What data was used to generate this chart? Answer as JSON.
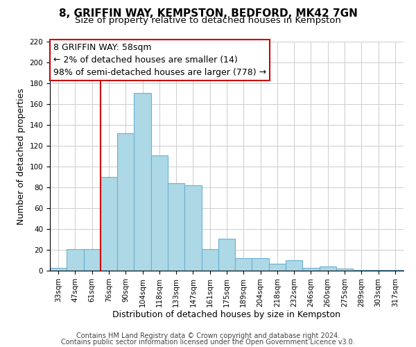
{
  "title": "8, GRIFFIN WAY, KEMPSTON, BEDFORD, MK42 7GN",
  "subtitle": "Size of property relative to detached houses in Kempston",
  "xlabel": "Distribution of detached houses by size in Kempston",
  "ylabel": "Number of detached properties",
  "bar_labels": [
    "33sqm",
    "47sqm",
    "61sqm",
    "76sqm",
    "90sqm",
    "104sqm",
    "118sqm",
    "133sqm",
    "147sqm",
    "161sqm",
    "175sqm",
    "189sqm",
    "204sqm",
    "218sqm",
    "232sqm",
    "246sqm",
    "260sqm",
    "275sqm",
    "289sqm",
    "303sqm",
    "317sqm"
  ],
  "bar_values": [
    3,
    21,
    21,
    90,
    132,
    171,
    111,
    84,
    82,
    21,
    31,
    12,
    12,
    7,
    10,
    3,
    4,
    2,
    1,
    1,
    1
  ],
  "bar_color": "#add8e6",
  "bar_edge_color": "#6ab0d4",
  "vline_x": 2.5,
  "vline_color": "#cc0000",
  "ylim": [
    0,
    220
  ],
  "yticks": [
    0,
    20,
    40,
    60,
    80,
    100,
    120,
    140,
    160,
    180,
    200,
    220
  ],
  "ann_line1": "8 GRIFFIN WAY: 58sqm",
  "ann_line2": "← 2% of detached houses are smaller (14)",
  "ann_line3": "98% of semi-detached houses are larger (778) →",
  "footer_line1": "Contains HM Land Registry data © Crown copyright and database right 2024.",
  "footer_line2": "Contains public sector information licensed under the Open Government Licence v3.0.",
  "bg_color": "#ffffff",
  "grid_color": "#cccccc",
  "title_fontsize": 11,
  "subtitle_fontsize": 9.5,
  "tick_fontsize": 7.5,
  "ylabel_fontsize": 9,
  "xlabel_fontsize": 9,
  "footer_fontsize": 7,
  "ann_fontsize": 9
}
